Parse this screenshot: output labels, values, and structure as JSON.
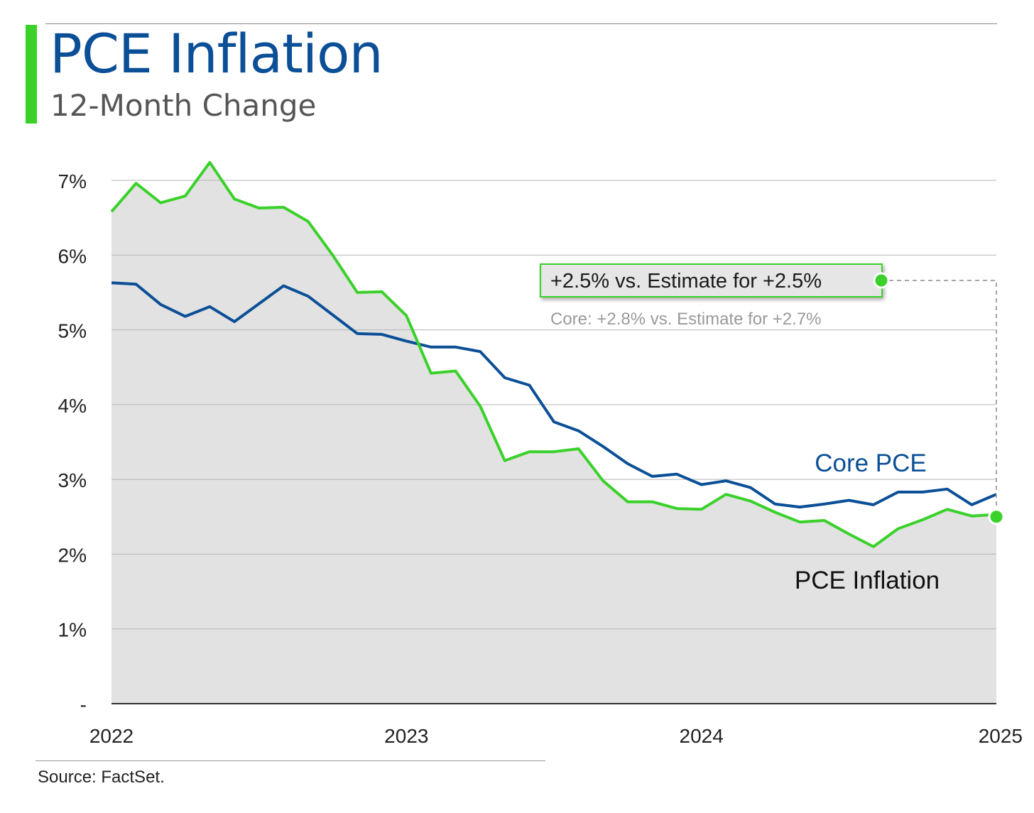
{
  "header": {
    "title": "PCE Inflation",
    "subtitle": "12-Month Change"
  },
  "footer": {
    "source": "Source: FactSet."
  },
  "annotation": {
    "headline": "+2.5% vs. Estimate for +2.5%",
    "core_note": "Core: +2.8% vs. Estimate for +2.7%"
  },
  "colors": {
    "title": "#0b4f96",
    "pce": "#3ad12a",
    "core": "#0b4f96",
    "area_fill": "#e2e2e2",
    "grid": "#b5b5b5",
    "annotation_box": "#e6e6e6"
  },
  "chart_data": {
    "type": "line",
    "title": "PCE Inflation",
    "subtitle": "12-Month Change",
    "x_axis_labels": [
      "2022",
      "2023",
      "2024",
      "2025"
    ],
    "y_ticks": [
      "-",
      "1%",
      "2%",
      "3%",
      "4%",
      "5%",
      "6%",
      "7%"
    ],
    "ylim": [
      0,
      7
    ],
    "grid": true,
    "x": [
      "2022-01",
      "2022-02",
      "2022-03",
      "2022-04",
      "2022-05",
      "2022-06",
      "2022-07",
      "2022-08",
      "2022-09",
      "2022-10",
      "2022-11",
      "2022-12",
      "2023-01",
      "2023-02",
      "2023-03",
      "2023-04",
      "2023-05",
      "2023-06",
      "2023-07",
      "2023-08",
      "2023-09",
      "2023-10",
      "2023-11",
      "2023-12",
      "2024-01",
      "2024-02",
      "2024-03",
      "2024-04",
      "2024-05",
      "2024-06",
      "2024-07",
      "2024-08",
      "2024-09",
      "2024-10",
      "2024-11",
      "2024-12",
      "2025-01"
    ],
    "series": [
      {
        "name": "PCE Inflation",
        "area": true,
        "values": [
          6.58,
          6.96,
          6.7,
          6.79,
          7.24,
          6.75,
          6.63,
          6.64,
          6.45,
          6.0,
          5.5,
          5.51,
          5.19,
          4.42,
          4.45,
          3.98,
          3.25,
          3.37,
          3.37,
          3.41,
          2.98,
          2.7,
          2.7,
          2.61,
          2.6,
          2.8,
          2.71,
          2.56,
          2.43,
          2.45,
          2.27,
          2.1,
          2.34,
          2.46,
          2.6,
          2.51,
          2.53
        ]
      },
      {
        "name": "Core PCE",
        "values": [
          5.63,
          5.61,
          5.34,
          5.18,
          5.31,
          5.11,
          5.35,
          5.59,
          5.45,
          5.2,
          4.95,
          4.94,
          4.85,
          4.77,
          4.77,
          4.71,
          4.36,
          4.26,
          3.77,
          3.65,
          3.44,
          3.21,
          3.04,
          3.07,
          2.93,
          2.98,
          2.89,
          2.67,
          2.63,
          2.67,
          2.72,
          2.66,
          2.83,
          2.83,
          2.87,
          2.66,
          2.8
        ]
      }
    ],
    "highlight_point": {
      "series": "PCE Inflation",
      "x": "2025-01",
      "y": 2.5
    }
  }
}
